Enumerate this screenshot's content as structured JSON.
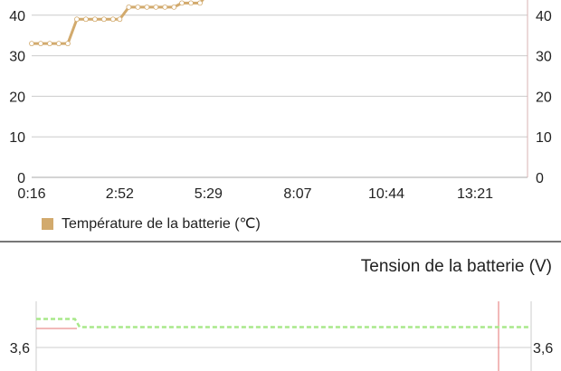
{
  "colors": {
    "temperature": "#d2aa6d",
    "voltage": "#a8e88a",
    "marker": "#e57373",
    "grid": "#cccccc"
  },
  "chart_data": [
    {
      "type": "line",
      "title": "",
      "legend": "Température de la batterie (℃)",
      "legend_position": "bottom-left",
      "x_ticks": [
        "0:16",
        "2:52",
        "5:29",
        "8:07",
        "10:44",
        "13:21"
      ],
      "y_ticks": [
        "0",
        "10",
        "20",
        "30",
        "40"
      ],
      "ylim": [
        0,
        44
      ],
      "grid": true,
      "points": [
        [
          "0:16",
          33
        ],
        [
          "0:32",
          33
        ],
        [
          "0:48",
          33
        ],
        [
          "1:04",
          33
        ],
        [
          "1:20",
          33
        ],
        [
          "1:36",
          39
        ],
        [
          "1:52",
          39
        ],
        [
          "2:08",
          39
        ],
        [
          "2:24",
          39
        ],
        [
          "2:40",
          39
        ],
        [
          "2:52",
          39
        ],
        [
          "3:08",
          42
        ],
        [
          "3:24",
          42
        ],
        [
          "3:40",
          42
        ],
        [
          "3:56",
          42
        ],
        [
          "4:12",
          42
        ],
        [
          "4:28",
          42
        ],
        [
          "4:42",
          43
        ],
        [
          "4:58",
          43
        ],
        [
          "5:14",
          43
        ],
        [
          "5:32",
          46
        ]
      ]
    },
    {
      "type": "line",
      "title": "Tension de la batterie (V)",
      "y_ticks": [
        "3,6"
      ],
      "grid": true,
      "points": [
        [
          "0:16",
          3.67
        ],
        [
          "1:20",
          3.67
        ],
        [
          "1:28",
          3.65
        ],
        [
          "13:55",
          3.65
        ]
      ]
    }
  ]
}
